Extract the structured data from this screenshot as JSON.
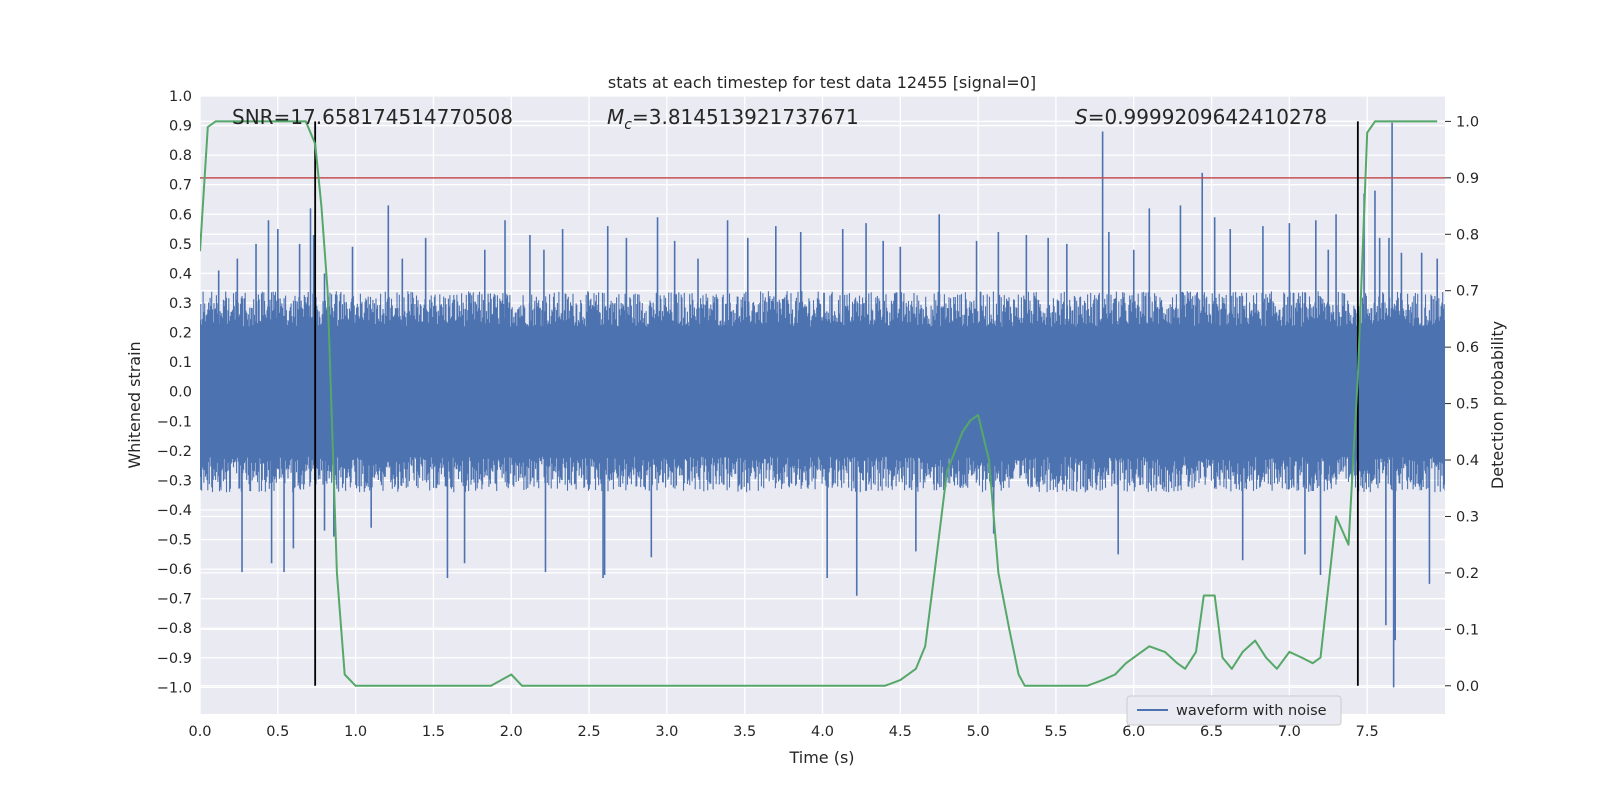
{
  "chart_data": {
    "type": "line",
    "title": "stats at each timestep for test data 12455 [signal=0]",
    "xlabel": "Time (s)",
    "ylabel": "Whitened strain",
    "y2label": "Detection probability",
    "xlim": [
      0.0,
      8.0
    ],
    "ylim": [
      -1.09,
      1.0
    ],
    "y2lim": [
      -0.05,
      1.045
    ],
    "xticks": [
      "0.0",
      "0.5",
      "1.0",
      "1.5",
      "2.0",
      "2.5",
      "3.0",
      "3.5",
      "4.0",
      "4.5",
      "5.0",
      "5.5",
      "6.0",
      "6.5",
      "7.0",
      "7.5"
    ],
    "yticks": [
      "1.0",
      "0.9",
      "0.8",
      "0.7",
      "0.6",
      "0.5",
      "0.4",
      "0.3",
      "0.2",
      "0.1",
      "0.0",
      "−0.1",
      "−0.2",
      "−0.3",
      "−0.4",
      "−0.5",
      "−0.6",
      "−0.7",
      "−0.8",
      "−0.9",
      "−1.0"
    ],
    "y2ticks": [
      "0.0",
      "0.1",
      "0.2",
      "0.3",
      "0.4",
      "0.5",
      "0.6",
      "0.7",
      "0.8",
      "0.9",
      "1.0"
    ],
    "annotations": [
      {
        "prefix": "SNR=",
        "value": "17.658174514770508"
      },
      {
        "prefix": "M",
        "sub": "c",
        "suffix": "=",
        "value": "3.814513921737671"
      },
      {
        "prefix": "S",
        "suffix": "=",
        "value": "0.9999209642410278"
      }
    ],
    "threshold": 0.9,
    "vlines": [
      0.74,
      7.44
    ],
    "legend": {
      "label": "waveform with noise",
      "placement": "lower-right"
    },
    "grid": true,
    "series": [
      {
        "name": "waveform with noise",
        "axis": "left",
        "color": "#4c72b0",
        "envelope": {
          "core": 0.22,
          "spread": 0.12
        },
        "spikes": [
          {
            "x": 0.12,
            "y": 0.41
          },
          {
            "x": 0.24,
            "y": 0.45
          },
          {
            "x": 0.36,
            "y": 0.5
          },
          {
            "x": 0.44,
            "y": 0.58
          },
          {
            "x": 0.46,
            "y": -0.58
          },
          {
            "x": 0.54,
            "y": -0.61
          },
          {
            "x": 0.5,
            "y": 0.55
          },
          {
            "x": 0.64,
            "y": 0.5
          },
          {
            "x": 0.71,
            "y": 0.62
          },
          {
            "x": 0.73,
            "y": 0.53
          },
          {
            "x": 0.8,
            "y": 0.4
          },
          {
            "x": 0.86,
            "y": -0.49
          },
          {
            "x": 0.98,
            "y": 0.49
          },
          {
            "x": 1.21,
            "y": 0.63
          },
          {
            "x": 1.3,
            "y": 0.45
          },
          {
            "x": 1.45,
            "y": 0.52
          },
          {
            "x": 1.59,
            "y": -0.63
          },
          {
            "x": 1.83,
            "y": 0.48
          },
          {
            "x": 1.96,
            "y": 0.58
          },
          {
            "x": 2.12,
            "y": 0.53
          },
          {
            "x": 2.21,
            "y": 0.48
          },
          {
            "x": 2.22,
            "y": -0.61
          },
          {
            "x": 2.33,
            "y": 0.55
          },
          {
            "x": 2.59,
            "y": -0.63
          },
          {
            "x": 2.62,
            "y": 0.56
          },
          {
            "x": 2.74,
            "y": 0.52
          },
          {
            "x": 2.94,
            "y": 0.59
          },
          {
            "x": 3.05,
            "y": 0.51
          },
          {
            "x": 3.2,
            "y": 0.45
          },
          {
            "x": 3.39,
            "y": 0.58
          },
          {
            "x": 3.52,
            "y": 0.52
          },
          {
            "x": 3.7,
            "y": 0.56
          },
          {
            "x": 3.86,
            "y": 0.54
          },
          {
            "x": 4.03,
            "y": -0.63
          },
          {
            "x": 4.13,
            "y": 0.55
          },
          {
            "x": 4.22,
            "y": -0.69
          },
          {
            "x": 4.28,
            "y": 0.57
          },
          {
            "x": 4.39,
            "y": 0.51
          },
          {
            "x": 4.5,
            "y": 0.49
          },
          {
            "x": 4.75,
            "y": 0.6
          },
          {
            "x": 4.99,
            "y": 0.51
          },
          {
            "x": 5.13,
            "y": 0.54
          },
          {
            "x": 5.31,
            "y": 0.53
          },
          {
            "x": 5.45,
            "y": 0.52
          },
          {
            "x": 5.57,
            "y": 0.5
          },
          {
            "x": 5.8,
            "y": 0.88
          },
          {
            "x": 5.84,
            "y": 0.54
          },
          {
            "x": 6.0,
            "y": 0.48
          },
          {
            "x": 6.1,
            "y": 0.62
          },
          {
            "x": 6.3,
            "y": 0.63
          },
          {
            "x": 6.44,
            "y": 0.74
          },
          {
            "x": 6.52,
            "y": 0.59
          },
          {
            "x": 6.62,
            "y": 0.55
          },
          {
            "x": 6.83,
            "y": 0.56
          },
          {
            "x": 7.0,
            "y": 0.57
          },
          {
            "x": 7.17,
            "y": 0.58
          },
          {
            "x": 7.25,
            "y": 0.48
          },
          {
            "x": 7.3,
            "y": 0.6
          },
          {
            "x": 7.48,
            "y": 0.67
          },
          {
            "x": 7.55,
            "y": 0.68
          },
          {
            "x": 7.58,
            "y": 0.52
          },
          {
            "x": 7.62,
            "y": -0.79
          },
          {
            "x": 7.64,
            "y": 0.52
          },
          {
            "x": 7.66,
            "y": 0.91
          },
          {
            "x": 7.67,
            "y": -1.0
          },
          {
            "x": 7.68,
            "y": -0.84
          },
          {
            "x": 7.72,
            "y": 0.47
          },
          {
            "x": 7.85,
            "y": 0.47
          },
          {
            "x": 7.95,
            "y": 0.45
          },
          {
            "x": 0.6,
            "y": -0.53
          },
          {
            "x": 0.8,
            "y": -0.47
          },
          {
            "x": 1.1,
            "y": -0.46
          },
          {
            "x": 1.7,
            "y": -0.58
          },
          {
            "x": 2.6,
            "y": -0.62
          },
          {
            "x": 2.9,
            "y": -0.56
          },
          {
            "x": 4.6,
            "y": -0.54
          },
          {
            "x": 5.1,
            "y": -0.48
          },
          {
            "x": 5.9,
            "y": -0.55
          },
          {
            "x": 6.7,
            "y": -0.57
          },
          {
            "x": 7.1,
            "y": -0.55
          },
          {
            "x": 7.2,
            "y": -0.62
          },
          {
            "x": 7.9,
            "y": -0.65
          },
          {
            "x": 0.27,
            "y": -0.61
          }
        ]
      },
      {
        "name": "",
        "axis": "right",
        "color": "#55a868",
        "x": [
          0.0,
          0.05,
          0.1,
          0.15,
          0.2,
          0.3,
          0.4,
          0.5,
          0.6,
          0.68,
          0.74,
          0.78,
          0.82,
          0.88,
          0.93,
          1.0,
          1.1,
          1.3,
          1.5,
          1.7,
          1.87,
          2.0,
          2.07,
          2.15,
          2.2,
          2.3,
          2.5,
          2.8,
          3.2,
          3.6,
          3.8,
          4.2,
          4.4,
          4.5,
          4.6,
          4.66,
          4.72,
          4.8,
          4.9,
          4.95,
          5.0,
          5.07,
          5.13,
          5.2,
          5.26,
          5.3,
          5.5,
          5.7,
          5.8,
          5.88,
          5.95,
          6.1,
          6.2,
          6.28,
          6.33,
          6.4,
          6.45,
          6.52,
          6.57,
          6.63,
          6.7,
          6.78,
          6.85,
          6.92,
          7.0,
          7.08,
          7.15,
          7.2,
          7.3,
          7.38,
          7.44,
          7.5,
          7.55,
          7.6,
          7.7,
          7.85,
          7.95
        ],
        "values": [
          0.77,
          0.99,
          1.0,
          1.0,
          1.0,
          1.0,
          1.0,
          1.0,
          1.0,
          1.0,
          0.96,
          0.85,
          0.7,
          0.2,
          0.02,
          0.0,
          0.0,
          0.0,
          0.0,
          0.0,
          0.0,
          0.02,
          0.0,
          0.0,
          0.0,
          0.0,
          0.0,
          0.0,
          0.0,
          0.0,
          0.0,
          0.0,
          0.0,
          0.01,
          0.03,
          0.07,
          0.2,
          0.38,
          0.45,
          0.47,
          0.48,
          0.4,
          0.2,
          0.1,
          0.02,
          0.0,
          0.0,
          0.0,
          0.01,
          0.02,
          0.04,
          0.07,
          0.06,
          0.04,
          0.03,
          0.06,
          0.16,
          0.16,
          0.05,
          0.03,
          0.06,
          0.08,
          0.05,
          0.03,
          0.06,
          0.05,
          0.04,
          0.05,
          0.3,
          0.25,
          0.55,
          0.98,
          1.0,
          1.0,
          1.0,
          1.0,
          1.0
        ]
      }
    ]
  }
}
